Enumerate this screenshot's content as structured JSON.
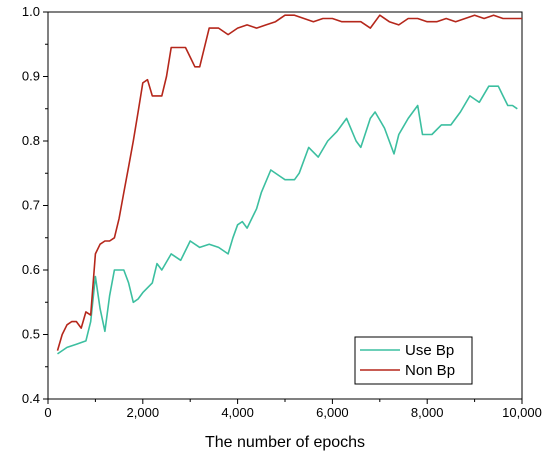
{
  "chart_data": {
    "type": "line",
    "title": "",
    "xlabel": "The number of epochs",
    "ylabel": "",
    "xlim": [
      0,
      10000
    ],
    "ylim": [
      0.4,
      1.0
    ],
    "xticks": [
      0,
      2000,
      4000,
      6000,
      8000,
      10000
    ],
    "xtick_labels": [
      "0",
      "2,000",
      "4,000",
      "6,000",
      "8,000",
      "10,000"
    ],
    "yticks": [
      0.4,
      0.5,
      0.6,
      0.7,
      0.8,
      0.9,
      1.0
    ],
    "ytick_labels": [
      "0.4",
      "0.5",
      "0.6",
      "0.7",
      "0.8",
      "0.9",
      "1.0"
    ],
    "grid": false,
    "legend_position": "bottom-right",
    "series": [
      {
        "name": "Use Bp",
        "color": "#3cbfa0",
        "x": [
          200,
          400,
          600,
          800,
          900,
          1000,
          1100,
          1200,
          1300,
          1400,
          1600,
          1700,
          1800,
          1900,
          2000,
          2200,
          2300,
          2400,
          2600,
          2800,
          3000,
          3200,
          3400,
          3600,
          3800,
          3900,
          4000,
          4100,
          4200,
          4400,
          4500,
          4700,
          4900,
          5000,
          5200,
          5300,
          5500,
          5700,
          5900,
          6100,
          6300,
          6500,
          6600,
          6800,
          6900,
          7100,
          7300,
          7400,
          7600,
          7800,
          7900,
          8100,
          8300,
          8500,
          8700,
          8900,
          9000,
          9100,
          9300,
          9400,
          9500,
          9600,
          9700,
          9800,
          9900
        ],
        "values": [
          0.47,
          0.48,
          0.485,
          0.49,
          0.52,
          0.59,
          0.54,
          0.505,
          0.56,
          0.6,
          0.6,
          0.58,
          0.55,
          0.555,
          0.565,
          0.58,
          0.61,
          0.6,
          0.625,
          0.615,
          0.645,
          0.635,
          0.64,
          0.635,
          0.625,
          0.65,
          0.67,
          0.675,
          0.665,
          0.695,
          0.72,
          0.755,
          0.745,
          0.74,
          0.74,
          0.75,
          0.79,
          0.775,
          0.8,
          0.815,
          0.835,
          0.8,
          0.79,
          0.835,
          0.845,
          0.82,
          0.78,
          0.81,
          0.835,
          0.855,
          0.81,
          0.81,
          0.825,
          0.825,
          0.845,
          0.87,
          0.865,
          0.86,
          0.885,
          0.885,
          0.885,
          0.87,
          0.855,
          0.855,
          0.85
        ]
      },
      {
        "name": "Non Bp",
        "color": "#b5271b",
        "x": [
          200,
          300,
          400,
          500,
          600,
          700,
          800,
          900,
          1000,
          1100,
          1200,
          1300,
          1400,
          1500,
          1600,
          1700,
          1800,
          1900,
          2000,
          2100,
          2200,
          2400,
          2500,
          2600,
          2700,
          2800,
          2900,
          3000,
          3100,
          3200,
          3400,
          3600,
          3800,
          4000,
          4200,
          4400,
          4600,
          4800,
          5000,
          5200,
          5400,
          5600,
          5800,
          6000,
          6200,
          6400,
          6600,
          6800,
          7000,
          7200,
          7400,
          7600,
          7800,
          8000,
          8200,
          8400,
          8600,
          8800,
          9000,
          9200,
          9400,
          9600,
          9800,
          10000
        ],
        "values": [
          0.475,
          0.5,
          0.515,
          0.52,
          0.52,
          0.51,
          0.535,
          0.53,
          0.625,
          0.64,
          0.645,
          0.645,
          0.65,
          0.68,
          0.72,
          0.76,
          0.8,
          0.845,
          0.89,
          0.895,
          0.87,
          0.87,
          0.9,
          0.945,
          0.945,
          0.945,
          0.945,
          0.93,
          0.915,
          0.915,
          0.975,
          0.975,
          0.965,
          0.975,
          0.98,
          0.975,
          0.98,
          0.985,
          0.995,
          0.995,
          0.99,
          0.985,
          0.99,
          0.99,
          0.985,
          0.985,
          0.985,
          0.975,
          0.995,
          0.985,
          0.98,
          0.99,
          0.99,
          0.985,
          0.985,
          0.99,
          0.985,
          0.99,
          0.995,
          0.99,
          0.995,
          0.99,
          0.99,
          0.99
        ]
      }
    ]
  }
}
